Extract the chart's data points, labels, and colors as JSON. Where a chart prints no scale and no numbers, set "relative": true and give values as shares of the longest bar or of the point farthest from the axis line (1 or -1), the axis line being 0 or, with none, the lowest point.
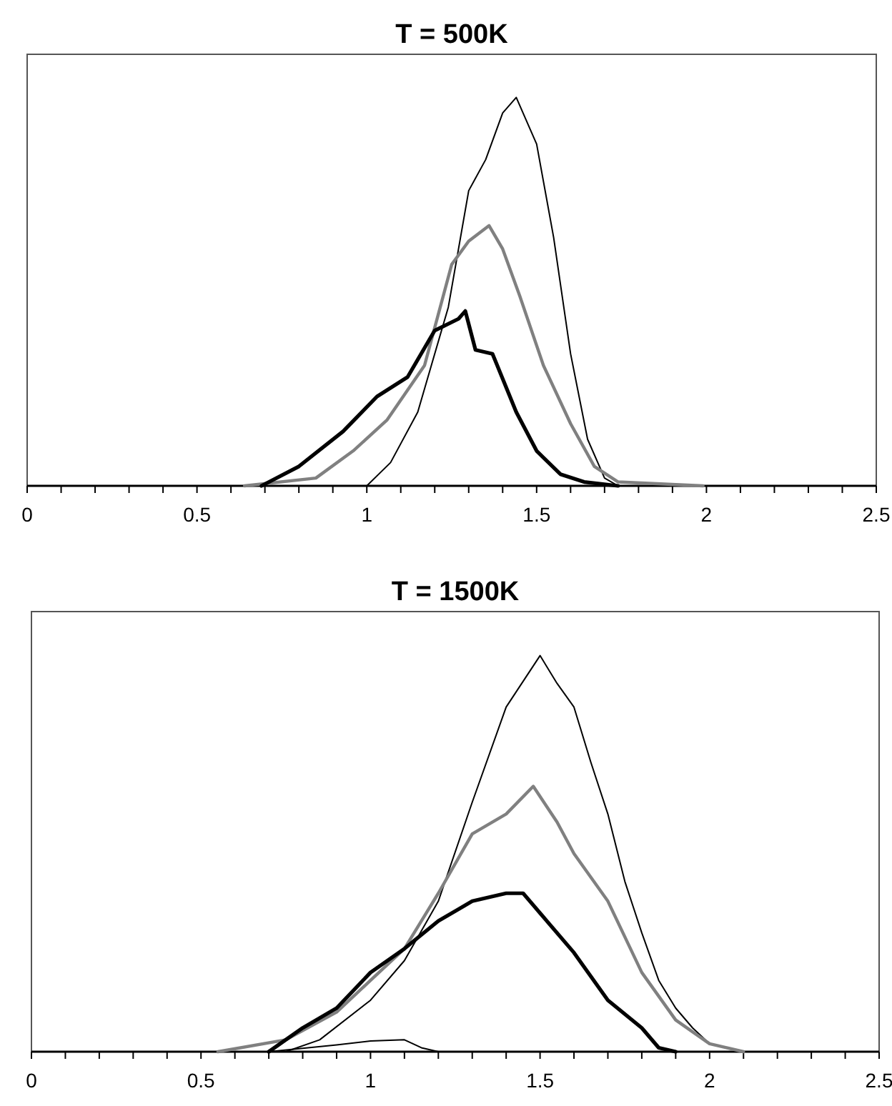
{
  "chart_data": [
    {
      "type": "line",
      "title": "T = 500K",
      "relative": true,
      "xlim": [
        0,
        2.5
      ],
      "tick_labels": "x",
      "xticks": [
        0,
        {
          "value": 0.1,
          "label": null
        },
        {
          "value": 0.2,
          "label": null
        },
        {
          "value": 0.3,
          "label": null
        },
        {
          "value": 0.4,
          "label": null
        },
        0.5,
        {
          "value": 0.6,
          "label": null
        },
        {
          "value": 0.7,
          "label": null
        },
        {
          "value": 0.8,
          "label": null
        },
        {
          "value": 0.9,
          "label": null
        },
        1,
        {
          "value": 1.1,
          "label": null
        },
        {
          "value": 1.2,
          "label": null
        },
        {
          "value": 1.3,
          "label": null
        },
        {
          "value": 1.4,
          "label": null
        },
        1.5,
        {
          "value": 1.6,
          "label": null
        },
        {
          "value": 1.7,
          "label": null
        },
        {
          "value": 1.8,
          "label": null
        },
        {
          "value": 1.9,
          "label": null
        },
        2,
        {
          "value": 2.1,
          "label": null
        },
        {
          "value": 2.2,
          "label": null
        },
        {
          "value": 2.3,
          "label": null
        },
        {
          "value": 2.4,
          "label": null
        },
        2.5
      ],
      "series": [
        {
          "color": "#000000",
          "x": [
            1.0,
            1.07,
            1.15,
            1.24,
            1.3,
            1.35,
            1.4,
            1.44,
            1.5,
            1.55,
            1.6,
            1.65,
            1.7,
            1.74
          ],
          "values": [
            0,
            0.06,
            0.19,
            0.46,
            0.76,
            0.84,
            0.96,
            1,
            0.88,
            0.64,
            0.34,
            0.12,
            0.02,
            0
          ]
        },
        {
          "color": "#808080",
          "x": [
            0.64,
            0.85,
            0.96,
            1.06,
            1.17,
            1.25,
            1.3,
            1.36,
            1.4,
            1.45,
            1.52,
            1.6,
            1.67,
            1.74,
            1.99
          ],
          "values": [
            0,
            0.02,
            0.09,
            0.17,
            0.31,
            0.57,
            0.63,
            0.67,
            0.61,
            0.49,
            0.31,
            0.16,
            0.05,
            0.01,
            0
          ]
        },
        {
          "color": "#000000",
          "x": [
            0.69,
            0.8,
            0.93,
            1.03,
            1.12,
            1.2,
            1.27,
            1.29,
            1.32,
            1.37,
            1.44,
            1.5,
            1.57,
            1.64,
            1.74
          ],
          "values": [
            0,
            0.05,
            0.14,
            0.23,
            0.28,
            0.4,
            0.43,
            0.45,
            0.35,
            0.34,
            0.19,
            0.09,
            0.03,
            0.01,
            0
          ]
        }
      ]
    },
    {
      "type": "line",
      "title": "T = 1500K",
      "relative": true,
      "xlim": [
        0,
        2.5
      ],
      "tick_labels": "x",
      "xticks": [
        0,
        {
          "value": 0.1,
          "label": null
        },
        {
          "value": 0.2,
          "label": null
        },
        {
          "value": 0.3,
          "label": null
        },
        {
          "value": 0.4,
          "label": null
        },
        0.5,
        {
          "value": 0.6,
          "label": null
        },
        {
          "value": 0.7,
          "label": null
        },
        {
          "value": 0.8,
          "label": null
        },
        {
          "value": 0.9,
          "label": null
        },
        1,
        {
          "value": 1.1,
          "label": null
        },
        {
          "value": 1.2,
          "label": null
        },
        {
          "value": 1.3,
          "label": null
        },
        {
          "value": 1.4,
          "label": null
        },
        1.5,
        {
          "value": 1.6,
          "label": null
        },
        {
          "value": 1.7,
          "label": null
        },
        {
          "value": 1.8,
          "label": null
        },
        {
          "value": 1.9,
          "label": null
        },
        2,
        {
          "value": 2.1,
          "label": null
        },
        {
          "value": 2.2,
          "label": null
        },
        {
          "value": 2.3,
          "label": null
        },
        {
          "value": 2.4,
          "label": null
        },
        2.5
      ],
      "series": [
        {
          "color": "#000000",
          "x": [
            0.75,
            0.85,
            1.0,
            1.1,
            1.2,
            1.3,
            1.4,
            1.5,
            1.55,
            1.6,
            1.65,
            1.7,
            1.75,
            1.8,
            1.85,
            1.9,
            1.95,
            2.0,
            2.1
          ],
          "values": [
            0,
            0.03,
            0.13,
            0.23,
            0.38,
            0.63,
            0.87,
            1,
            0.93,
            0.87,
            0.73,
            0.6,
            0.43,
            0.3,
            0.18,
            0.11,
            0.06,
            0.02,
            0
          ]
        },
        {
          "color": "#808080",
          "x": [
            0.55,
            0.75,
            0.9,
            1.0,
            1.1,
            1.2,
            1.3,
            1.4,
            1.48,
            1.55,
            1.6,
            1.7,
            1.8,
            1.9,
            2.0,
            2.1
          ],
          "values": [
            0,
            0.03,
            0.1,
            0.18,
            0.26,
            0.4,
            0.55,
            0.6,
            0.67,
            0.58,
            0.5,
            0.38,
            0.2,
            0.08,
            0.02,
            0
          ]
        },
        {
          "color": "#000000",
          "x": [
            0.7,
            0.8,
            0.9,
            1.0,
            1.1,
            1.2,
            1.3,
            1.4,
            1.45,
            1.5,
            1.6,
            1.7,
            1.8,
            1.85,
            1.9
          ],
          "values": [
            0,
            0.06,
            0.11,
            0.2,
            0.26,
            0.33,
            0.38,
            0.4,
            0.4,
            0.35,
            0.25,
            0.13,
            0.06,
            0.01,
            0
          ]
        },
        {
          "color": "#000000",
          "x": [
            0.7,
            0.9,
            1.0,
            1.1,
            1.15,
            1.2,
            2.0
          ],
          "values": [
            0,
            0.017,
            0.027,
            0.03,
            0.01,
            0,
            0
          ]
        }
      ]
    }
  ]
}
